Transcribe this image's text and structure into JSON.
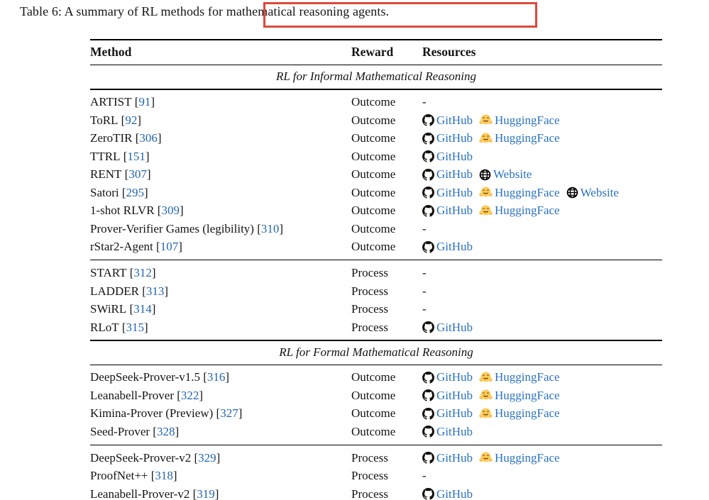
{
  "caption": "Table 6: A summary of RL methods for mathematical reasoning agents.",
  "colors": {
    "annotation_red": "#e0483a",
    "cite_blue": "#2165b1",
    "link_blue": "#2a72c2",
    "text": "#141414"
  },
  "table": {
    "headers": {
      "method": "Method",
      "reward": "Reward",
      "resources": "Resources"
    },
    "empty_resources": "-",
    "resource_labels": {
      "github": "GitHub",
      "huggingface": "HuggingFace",
      "website": "Website"
    },
    "sections": [
      {
        "title": "RL for Informal Mathematical Reasoning",
        "groups": [
          {
            "rows": [
              {
                "method": "ARTIST",
                "cite": "91",
                "reward": "Outcome",
                "resources": []
              },
              {
                "method": "ToRL",
                "cite": "92",
                "reward": "Outcome",
                "resources": [
                  "github",
                  "huggingface"
                ]
              },
              {
                "method": "ZeroTIR",
                "cite": "306",
                "reward": "Outcome",
                "resources": [
                  "github",
                  "huggingface"
                ]
              },
              {
                "method": "TTRL",
                "cite": "151",
                "reward": "Outcome",
                "resources": [
                  "github"
                ]
              },
              {
                "method": "RENT",
                "cite": "307",
                "reward": "Outcome",
                "resources": [
                  "github",
                  "website"
                ]
              },
              {
                "method": "Satori",
                "cite": "295",
                "reward": "Outcome",
                "resources": [
                  "github",
                  "huggingface",
                  "website"
                ]
              },
              {
                "method": "1-shot RLVR",
                "cite": "309",
                "reward": "Outcome",
                "resources": [
                  "github",
                  "huggingface"
                ]
              },
              {
                "method": "Prover-Verifier Games (legibility)",
                "cite": "310",
                "reward": "Outcome",
                "resources": []
              },
              {
                "method": "rStar2-Agent",
                "cite": "107",
                "reward": "Outcome",
                "resources": [
                  "github"
                ]
              }
            ]
          },
          {
            "rows": [
              {
                "method": "START",
                "cite": "312",
                "reward": "Process",
                "resources": []
              },
              {
                "method": "LADDER",
                "cite": "313",
                "reward": "Process",
                "resources": []
              },
              {
                "method": "SWiRL",
                "cite": "314",
                "reward": "Process",
                "resources": []
              },
              {
                "method": "RLoT",
                "cite": "315",
                "reward": "Process",
                "resources": [
                  "github"
                ]
              }
            ]
          }
        ]
      },
      {
        "title": "RL for Formal Mathematical Reasoning",
        "groups": [
          {
            "rows": [
              {
                "method": "DeepSeek-Prover-v1.5",
                "cite": "316",
                "reward": "Outcome",
                "resources": [
                  "github",
                  "huggingface"
                ]
              },
              {
                "method": "Leanabell-Prover",
                "cite": "322",
                "reward": "Outcome",
                "resources": [
                  "github",
                  "huggingface"
                ]
              },
              {
                "method": "Kimina-Prover (Preview)",
                "cite": "327",
                "reward": "Outcome",
                "resources": [
                  "github",
                  "huggingface"
                ]
              },
              {
                "method": "Seed-Prover",
                "cite": "328",
                "reward": "Outcome",
                "resources": [
                  "github"
                ]
              }
            ]
          },
          {
            "rows": [
              {
                "method": "DeepSeek-Prover-v2",
                "cite": "329",
                "reward": "Process",
                "resources": [
                  "github",
                  "huggingface"
                ]
              },
              {
                "method": "ProofNet++",
                "cite": "318",
                "reward": "Process",
                "resources": []
              },
              {
                "method": "Leanabell-Prover-v2",
                "cite": "319",
                "reward": "Process",
                "resources": [
                  "github"
                ]
              }
            ]
          }
        ]
      }
    ]
  }
}
